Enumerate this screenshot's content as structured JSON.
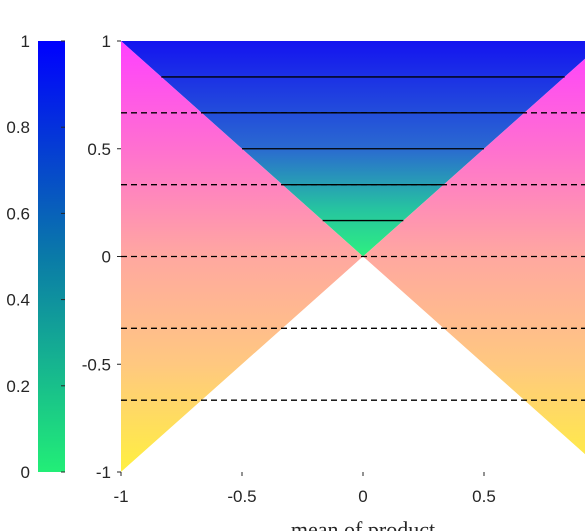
{
  "chart_data": {
    "type": "heatmap",
    "title": "",
    "xlabel": "mean of product",
    "ylabel": "",
    "xlim": [
      -1,
      1
    ],
    "ylim": [
      -1,
      1
    ],
    "x_ticks": [
      "-1",
      "-0.5",
      "0",
      "0.5"
    ],
    "y_ticks": [
      "-1",
      "-0.5",
      "0",
      "0.5",
      "1"
    ],
    "colorbar": {
      "range": [
        0,
        1
      ],
      "ticks": [
        "0",
        "0.2",
        "0.4",
        "0.6",
        "0.8",
        "1"
      ],
      "colors": [
        "#22ee77",
        "#0a7aa8",
        "#0000ff"
      ]
    },
    "regions": [
      {
        "id": "upper-cone",
        "polygon": [
          [
            -1,
            1
          ],
          [
            1,
            1
          ],
          [
            0,
            0
          ]
        ],
        "gradient_y": [
          [
            1,
            "#1414f0"
          ],
          [
            0.5,
            "#2a6ad0"
          ],
          [
            0.22,
            "#26c4a0"
          ],
          [
            0,
            "#2ef080"
          ]
        ]
      },
      {
        "id": "side-regions",
        "polygons": [
          [
            [
              -1,
              1
            ],
            [
              0,
              0
            ],
            [
              -1,
              -1
            ]
          ],
          [
            [
              1,
              1
            ],
            [
              0,
              0
            ],
            [
              1,
              -1
            ]
          ]
        ],
        "gradient_y": [
          [
            1,
            "#ff40ff"
          ],
          [
            0.5,
            "#ff70d0"
          ],
          [
            0,
            "#ffa8a0"
          ],
          [
            -0.5,
            "#ffc880"
          ],
          [
            -1,
            "#fff040"
          ]
        ]
      },
      {
        "id": "lower-cone",
        "polygon": [
          [
            -1,
            -1
          ],
          [
            1,
            -1
          ],
          [
            0,
            0
          ]
        ],
        "fill": "#ffffff"
      }
    ],
    "solid_lines_y": [
      0.83333,
      0.66667,
      0.5,
      0.33333,
      0.16667
    ],
    "dashed_lines_y": [
      0.66667,
      0.33333,
      0,
      -0.33333,
      -0.66667
    ]
  }
}
